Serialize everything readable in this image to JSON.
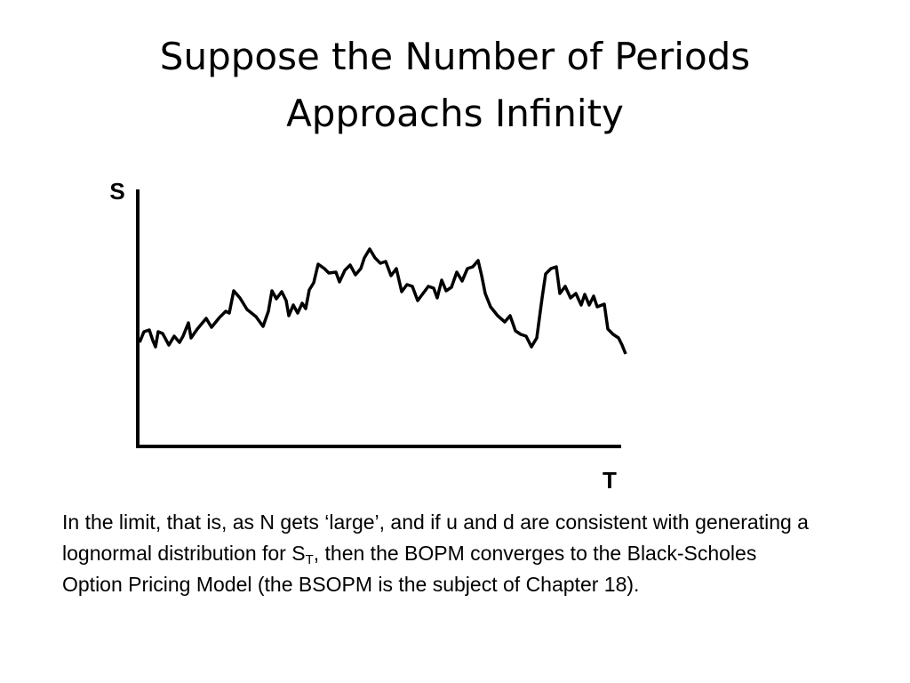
{
  "title": [
    "Suppose the Number of Periods",
    "Approachs Infinity"
  ],
  "diagram": {
    "y_label": "S",
    "x_label": "T"
  },
  "body": {
    "parts": [
      "In the limit, that is, as N gets ‘large’, and if u and d are consistent with generating a lognormal distribution for S",
      "T",
      ", then the BOPM converges to the Black-Scholes Option Pricing Model (the BSOPM is the subject of Chapter 18)."
    ]
  }
}
